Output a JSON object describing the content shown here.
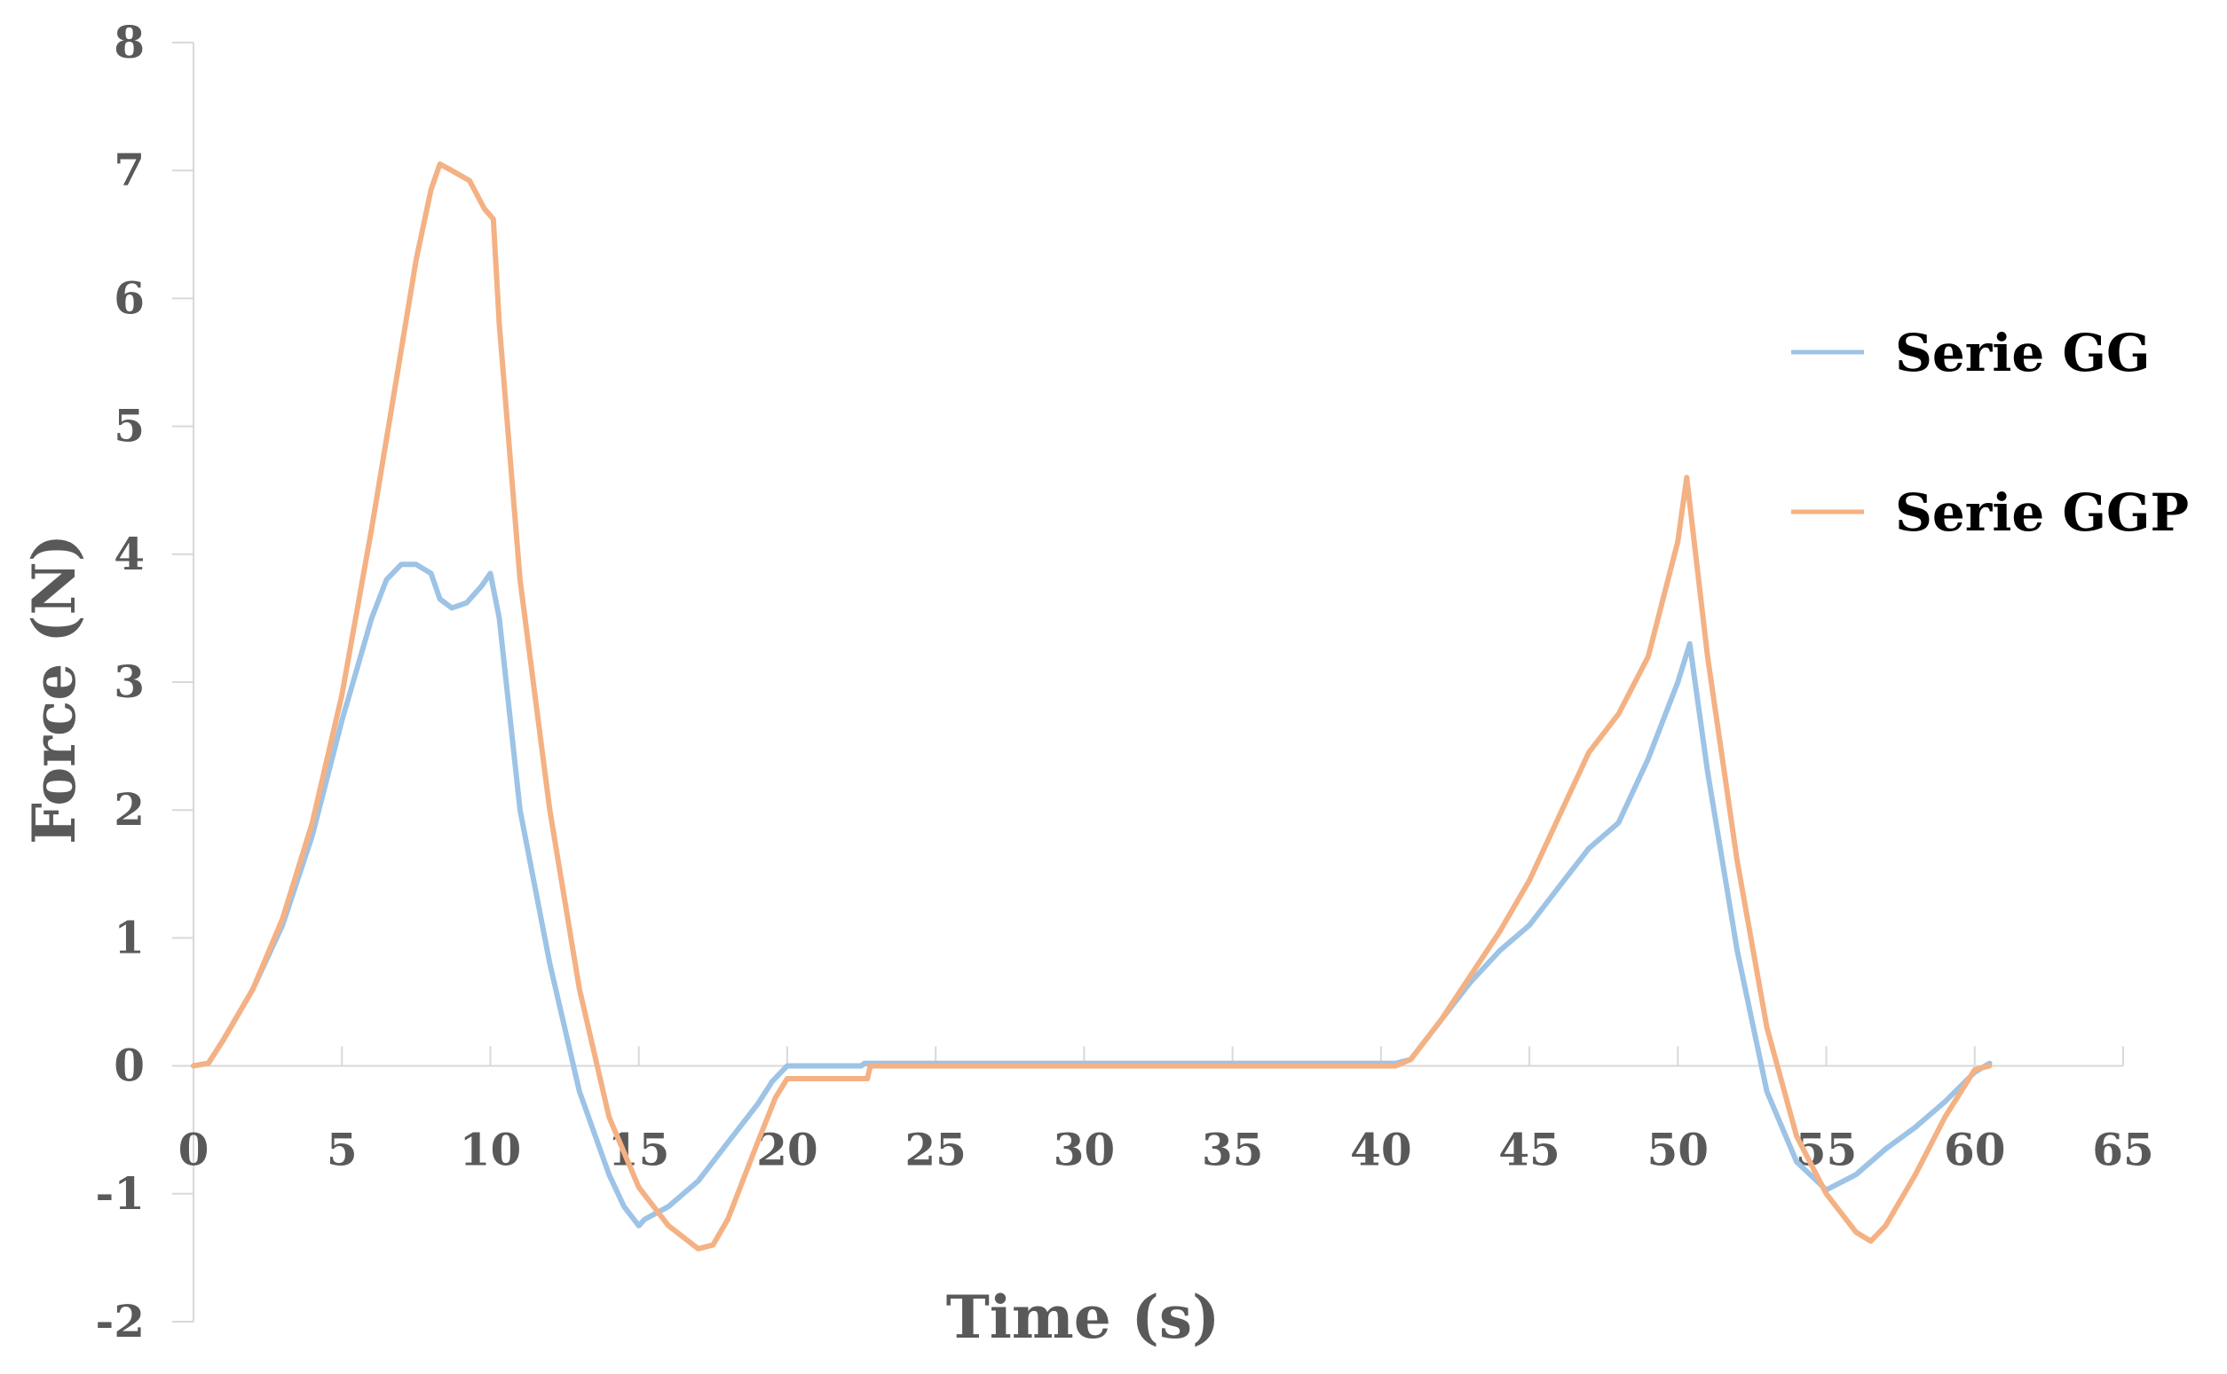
{
  "chart_data": {
    "type": "line",
    "xlabel": "Time (s)",
    "ylabel": "Force (N)",
    "xlim": [
      0,
      65
    ],
    "ylim": [
      -2,
      8
    ],
    "xticks": [
      0,
      5,
      10,
      15,
      20,
      25,
      30,
      35,
      40,
      45,
      50,
      55,
      60,
      65
    ],
    "yticks": [
      -2,
      -1,
      0,
      1,
      2,
      3,
      4,
      5,
      6,
      7,
      8
    ],
    "grid": false,
    "legend_position": "right",
    "series": [
      {
        "name": "Serie GG",
        "color": "#9DC3E6",
        "points": [
          [
            0,
            0
          ],
          [
            0.5,
            0.02
          ],
          [
            1,
            0.2
          ],
          [
            2,
            0.6
          ],
          [
            3,
            1.1
          ],
          [
            4,
            1.8
          ],
          [
            5,
            2.7
          ],
          [
            5.5,
            3.1
          ],
          [
            6,
            3.5
          ],
          [
            6.5,
            3.8
          ],
          [
            7,
            3.92
          ],
          [
            7.5,
            3.92
          ],
          [
            8,
            3.85
          ],
          [
            8.3,
            3.65
          ],
          [
            8.7,
            3.58
          ],
          [
            9.2,
            3.62
          ],
          [
            9.7,
            3.75
          ],
          [
            10,
            3.85
          ],
          [
            10.3,
            3.5
          ],
          [
            11,
            2.0
          ],
          [
            12,
            0.8
          ],
          [
            13,
            -0.2
          ],
          [
            14,
            -0.85
          ],
          [
            14.5,
            -1.1
          ],
          [
            15,
            -1.25
          ],
          [
            15.2,
            -1.2
          ],
          [
            16,
            -1.1
          ],
          [
            17,
            -0.9
          ],
          [
            18,
            -0.6
          ],
          [
            19,
            -0.3
          ],
          [
            19.5,
            -0.12
          ],
          [
            20,
            0
          ],
          [
            22.5,
            0
          ],
          [
            22.6,
            0.02
          ],
          [
            30,
            0.02
          ],
          [
            40.5,
            0.02
          ],
          [
            41,
            0.05
          ],
          [
            42,
            0.35
          ],
          [
            43,
            0.65
          ],
          [
            44,
            0.9
          ],
          [
            45,
            1.1
          ],
          [
            46,
            1.4
          ],
          [
            47,
            1.7
          ],
          [
            48,
            1.9
          ],
          [
            49,
            2.4
          ],
          [
            50,
            3.0
          ],
          [
            50.4,
            3.3
          ],
          [
            51,
            2.3
          ],
          [
            52,
            0.9
          ],
          [
            53,
            -0.2
          ],
          [
            54,
            -0.75
          ],
          [
            55,
            -0.97
          ],
          [
            56,
            -0.85
          ],
          [
            57,
            -0.65
          ],
          [
            58,
            -0.48
          ],
          [
            59,
            -0.28
          ],
          [
            60,
            -0.05
          ],
          [
            60.5,
            0.02
          ]
        ]
      },
      {
        "name": "Serie GGP",
        "color": "#F4B183",
        "points": [
          [
            0,
            0
          ],
          [
            0.5,
            0.02
          ],
          [
            1,
            0.2
          ],
          [
            2,
            0.6
          ],
          [
            3,
            1.15
          ],
          [
            4,
            1.9
          ],
          [
            5,
            2.9
          ],
          [
            6,
            4.2
          ],
          [
            7,
            5.6
          ],
          [
            7.5,
            6.3
          ],
          [
            8,
            6.85
          ],
          [
            8.3,
            7.05
          ],
          [
            8.7,
            7.0
          ],
          [
            9.3,
            6.92
          ],
          [
            9.8,
            6.7
          ],
          [
            10.1,
            6.62
          ],
          [
            10.3,
            5.8
          ],
          [
            11,
            3.8
          ],
          [
            12,
            2.0
          ],
          [
            13,
            0.6
          ],
          [
            14,
            -0.4
          ],
          [
            15,
            -0.95
          ],
          [
            16,
            -1.25
          ],
          [
            17,
            -1.43
          ],
          [
            17.5,
            -1.4
          ],
          [
            18,
            -1.2
          ],
          [
            19,
            -0.6
          ],
          [
            19.6,
            -0.25
          ],
          [
            20,
            -0.1
          ],
          [
            22.7,
            -0.1
          ],
          [
            22.8,
            0
          ],
          [
            30,
            0
          ],
          [
            40.5,
            0
          ],
          [
            41,
            0.05
          ],
          [
            42,
            0.35
          ],
          [
            43,
            0.7
          ],
          [
            44,
            1.05
          ],
          [
            45,
            1.45
          ],
          [
            46,
            1.95
          ],
          [
            47,
            2.45
          ],
          [
            48,
            2.75
          ],
          [
            49,
            3.2
          ],
          [
            50,
            4.1
          ],
          [
            50.3,
            4.6
          ],
          [
            51,
            3.2
          ],
          [
            52,
            1.6
          ],
          [
            53,
            0.3
          ],
          [
            54,
            -0.55
          ],
          [
            55,
            -1.0
          ],
          [
            56,
            -1.3
          ],
          [
            56.5,
            -1.37
          ],
          [
            57,
            -1.25
          ],
          [
            58,
            -0.85
          ],
          [
            59,
            -0.4
          ],
          [
            60,
            -0.03
          ],
          [
            60.5,
            0
          ]
        ]
      }
    ]
  }
}
